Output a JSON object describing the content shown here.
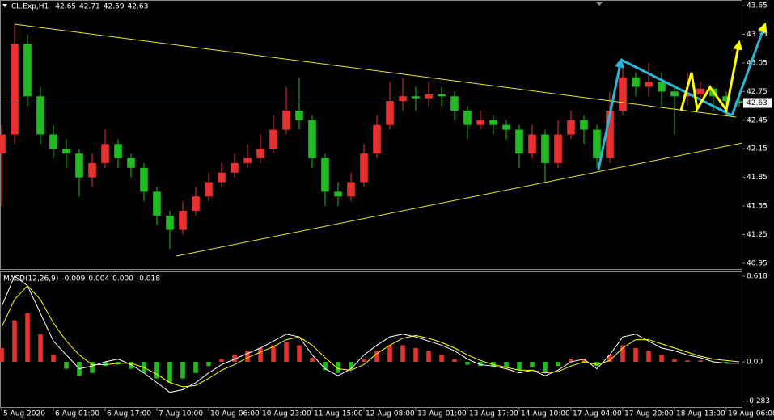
{
  "chart_data": [
    {
      "type": "candlestick",
      "title": "CL.Exp,H1",
      "open": [
        42.1,
        42.3,
        43.25,
        42.7,
        42.3,
        42.15,
        42.1,
        41.85,
        42.0,
        42.2,
        42.05,
        41.95,
        41.7,
        41.45,
        41.3,
        41.5,
        41.65,
        41.8,
        41.9,
        42.0,
        42.05,
        42.15,
        42.35,
        42.55,
        42.45,
        42.05,
        41.7,
        41.65,
        41.8,
        42.1,
        42.4,
        42.65,
        42.7,
        42.68,
        42.72,
        42.7,
        42.55,
        42.4,
        42.45,
        42.4,
        42.35,
        42.1,
        42.3,
        42.0,
        42.3,
        42.45,
        42.35,
        42.05,
        42.55,
        42.9,
        42.8,
        42.85,
        42.75,
        42.7,
        42.72,
        42.78,
        42.7,
        42.65
      ],
      "high": [
        42.4,
        43.45,
        43.35,
        42.8,
        42.4,
        42.25,
        42.15,
        42.1,
        42.35,
        42.25,
        42.1,
        42.0,
        41.75,
        41.5,
        41.6,
        41.75,
        41.9,
        42.0,
        42.1,
        42.2,
        42.3,
        42.5,
        42.8,
        42.9,
        42.5,
        42.1,
        41.8,
        41.9,
        42.2,
        42.5,
        42.85,
        42.9,
        42.8,
        42.85,
        42.8,
        42.75,
        42.6,
        42.55,
        42.5,
        42.45,
        42.4,
        42.4,
        42.35,
        42.45,
        42.55,
        42.5,
        42.4,
        42.75,
        43.0,
        42.95,
        43.05,
        42.95,
        42.8,
        42.95,
        42.85,
        42.8,
        42.75,
        42.71
      ],
      "low": [
        41.55,
        42.2,
        42.6,
        42.2,
        42.05,
        41.95,
        41.65,
        41.75,
        41.95,
        41.95,
        41.85,
        41.6,
        41.35,
        41.1,
        41.25,
        41.45,
        41.6,
        41.75,
        41.85,
        41.95,
        42.0,
        42.1,
        42.3,
        42.35,
        41.95,
        41.55,
        41.55,
        41.6,
        41.75,
        42.05,
        42.35,
        42.55,
        42.55,
        42.6,
        42.6,
        42.45,
        42.25,
        42.35,
        42.3,
        42.25,
        41.95,
        42.05,
        41.8,
        41.95,
        42.25,
        42.2,
        41.95,
        42.0,
        42.5,
        42.7,
        42.7,
        42.6,
        42.3,
        42.6,
        42.65,
        42.55,
        42.5,
        42.59
      ],
      "close": [
        42.3,
        43.25,
        42.7,
        42.3,
        42.15,
        42.1,
        41.85,
        42.0,
        42.2,
        42.05,
        41.95,
        41.7,
        41.45,
        41.3,
        41.5,
        41.65,
        41.8,
        41.9,
        42.0,
        42.05,
        42.15,
        42.35,
        42.55,
        42.45,
        42.05,
        41.7,
        41.65,
        41.8,
        42.1,
        42.4,
        42.65,
        42.7,
        42.68,
        42.72,
        42.7,
        42.55,
        42.4,
        42.45,
        42.4,
        42.35,
        42.1,
        42.3,
        42.0,
        42.3,
        42.45,
        42.35,
        42.05,
        42.55,
        42.9,
        42.8,
        42.85,
        42.75,
        42.7,
        42.72,
        42.78,
        42.7,
        42.65,
        42.63
      ],
      "up_color": "#e83030",
      "down_color": "#22bb22",
      "last_price": 42.63,
      "ylim": [
        40.89,
        43.71
      ],
      "yticks": [
        43.65,
        43.35,
        43.05,
        42.75,
        42.45,
        42.15,
        41.85,
        41.55,
        41.25,
        40.95
      ],
      "xlim": [
        -0.125,
        57.25
      ],
      "xticks": [
        {
          "value": 0,
          "label": "5 Aug 2020"
        },
        {
          "value": 4,
          "label": "6 Aug 01:00"
        },
        {
          "value": 8,
          "label": "6 Aug 17:00"
        },
        {
          "value": 12,
          "label": "7 Aug 10:00"
        },
        {
          "value": 16,
          "label": "10 Aug 06:00"
        },
        {
          "value": 20,
          "label": "10 Aug 23:00"
        },
        {
          "value": 24,
          "label": "11 Aug 15:00"
        },
        {
          "value": 28,
          "label": "12 Aug 08:00"
        },
        {
          "value": 32,
          "label": "13 Aug 01:00"
        },
        {
          "value": 36,
          "label": "13 Aug 17:00"
        },
        {
          "value": 40,
          "label": "14 Aug 10:00"
        },
        {
          "value": 44,
          "label": "17 Aug 04:00"
        },
        {
          "value": 48,
          "label": "17 Aug 20:00"
        },
        {
          "value": 52,
          "label": "18 Aug 13:00"
        },
        {
          "value": 56,
          "label": "19 Aug 06:00"
        }
      ]
    },
    {
      "type": "macd",
      "title": "MACD(12,26,9)",
      "readout": [
        -0.009,
        0.004,
        {
          "value": 0,
          "label": "0.000"
        },
        -0.018
      ],
      "histogram": [
        0.1,
        0.3,
        0.35,
        0.2,
        0.05,
        -0.05,
        -0.1,
        -0.08,
        -0.03,
        -0.02,
        -0.05,
        -0.08,
        -0.12,
        -0.15,
        -0.12,
        -0.08,
        -0.03,
        0.02,
        0.05,
        0.08,
        0.1,
        0.12,
        0.14,
        0.12,
        0.03,
        -0.06,
        -0.08,
        -0.05,
        0.02,
        0.08,
        0.12,
        0.12,
        0.1,
        0.08,
        0.05,
        0.02,
        -0.02,
        -0.03,
        -0.04,
        -0.04,
        -0.06,
        -0.04,
        -0.07,
        -0.03,
        0.02,
        0.02,
        -0.03,
        0.05,
        0.12,
        0.1,
        0.08,
        0.05,
        0.02,
        0.01,
        0.01,
        0.0,
        -0.01,
        0.0
      ],
      "up_color": "#e83030",
      "down_color": "#22bb22",
      "series": [
        {
          "color": "#ffffff",
          "values": [
            0.4,
            0.62,
            0.55,
            0.35,
            0.15,
            0.05,
            -0.05,
            -0.03,
            0.0,
            0.02,
            -0.02,
            -0.08,
            -0.15,
            -0.22,
            -0.2,
            -0.15,
            -0.08,
            -0.02,
            0.02,
            0.06,
            0.1,
            0.15,
            0.2,
            0.18,
            0.05,
            -0.05,
            -0.1,
            -0.05,
            0.05,
            0.12,
            0.18,
            0.2,
            0.18,
            0.15,
            0.12,
            0.08,
            0.02,
            -0.02,
            -0.03,
            -0.05,
            -0.08,
            -0.06,
            -0.1,
            -0.06,
            0.0,
            0.02,
            -0.05,
            0.05,
            0.18,
            0.2,
            0.15,
            0.1,
            0.08,
            0.05,
            0.03,
            0.0,
            -0.01,
            -0.01
          ]
        },
        {
          "color": "#ffff00",
          "values": [
            0.25,
            0.45,
            0.55,
            0.45,
            0.28,
            0.15,
            0.05,
            -0.02,
            -0.02,
            -0.01,
            -0.01,
            -0.04,
            -0.09,
            -0.15,
            -0.18,
            -0.17,
            -0.12,
            -0.06,
            -0.02,
            0.03,
            0.07,
            0.11,
            0.16,
            0.18,
            0.12,
            0.03,
            -0.05,
            -0.06,
            -0.02,
            0.06,
            0.12,
            0.17,
            0.19,
            0.17,
            0.14,
            0.1,
            0.05,
            0.01,
            -0.02,
            -0.04,
            -0.06,
            -0.06,
            -0.08,
            -0.07,
            -0.03,
            0.0,
            -0.02,
            0.01,
            0.1,
            0.16,
            0.16,
            0.13,
            0.1,
            0.07,
            0.04,
            0.02,
            0.01,
            0.0
          ]
        }
      ],
      "ylim": [
        -0.332,
        0.653
      ],
      "yticks": [
        0.618,
        {
          "value": 0,
          "label": "0.00"
        },
        -0.283
      ]
    }
  ]
}
